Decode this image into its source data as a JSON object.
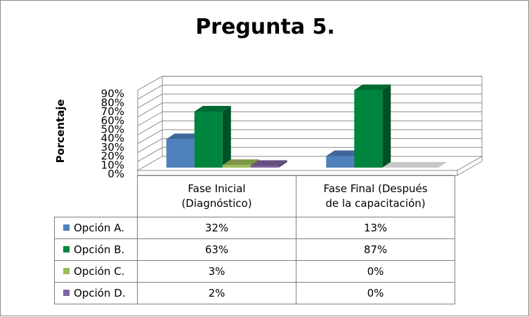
{
  "chart_data": {
    "type": "bar",
    "subtype": "3d-clustered-column",
    "title": "Pregunta 5.",
    "ylabel": "Porcentaje",
    "xlabel": "",
    "ylim": [
      0,
      90
    ],
    "yticks": [
      "0%",
      "10%",
      "20%",
      "30%",
      "40%",
      "50%",
      "60%",
      "70%",
      "80%",
      "90%"
    ],
    "categories": [
      "Fase Inicial (Diagnóstico)",
      "Fase Final (Después de la capacitación)"
    ],
    "category_lines": [
      [
        "Fase Inicial",
        "(Diagnóstico)"
      ],
      [
        "Fase Final (Después",
        "de la capacitación)"
      ]
    ],
    "series": [
      {
        "name": "Opción A.",
        "values": [
          32,
          13
        ],
        "labels": [
          "32%",
          "13%"
        ],
        "color": "#4f81bd"
      },
      {
        "name": "Opción B.",
        "values": [
          63,
          87
        ],
        "labels": [
          "63%",
          "87%"
        ],
        "color": "#00853f"
      },
      {
        "name": "Opción C.",
        "values": [
          3,
          0
        ],
        "labels": [
          "3%",
          "0%"
        ],
        "color": "#9bbb59"
      },
      {
        "name": "Opción D.",
        "values": [
          2,
          0
        ],
        "labels": [
          "2%",
          "0%"
        ],
        "color": "#8064a2"
      }
    ],
    "grid": true,
    "legend": "data-table"
  }
}
